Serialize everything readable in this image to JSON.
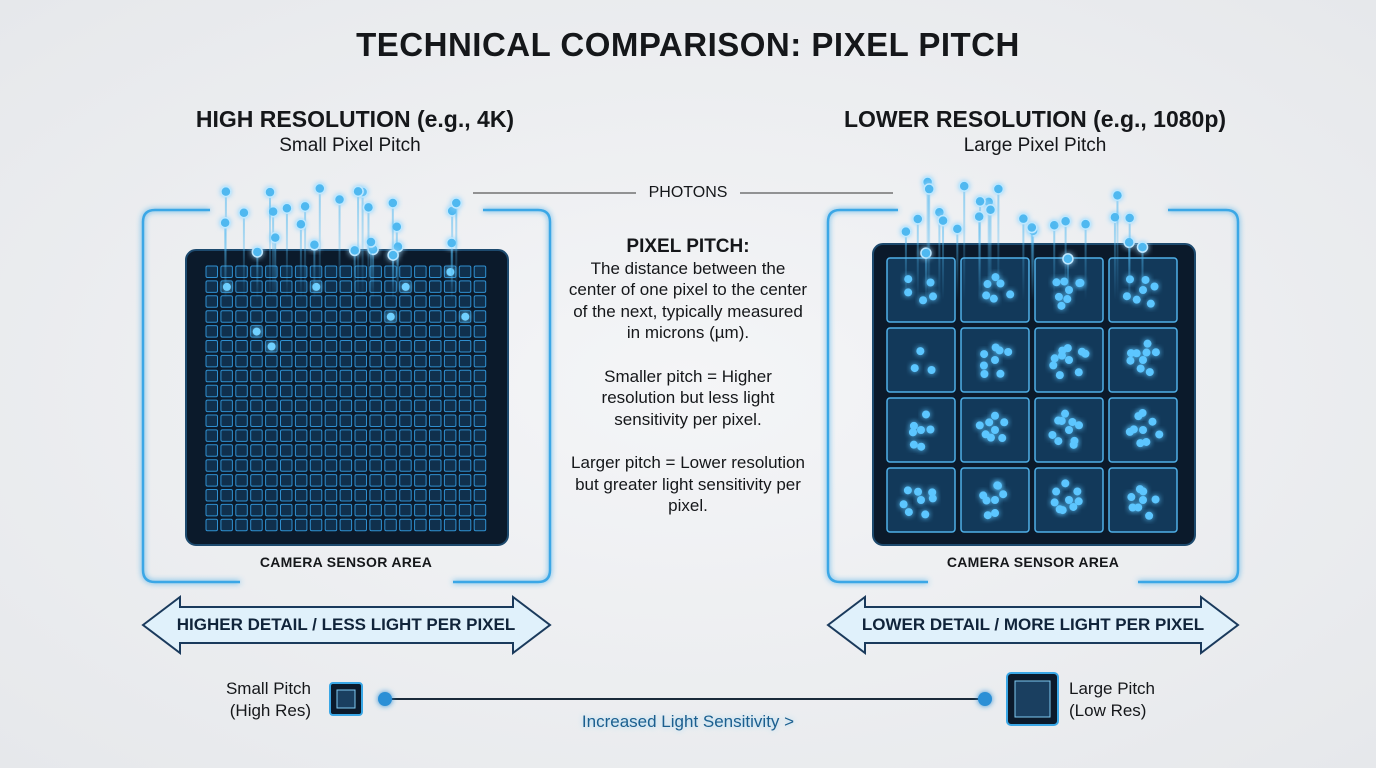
{
  "title": "TECHNICAL COMPARISON: PIXEL PITCH",
  "panels": [
    {
      "heading": "HIGH RESOLUTION (e.g., 4K)",
      "subheading": "Small Pixel Pitch",
      "sensor_label": "CAMERA SENSOR AREA",
      "arrow_label": "HIGHER DETAIL / LESS LIGHT PER PIXEL"
    },
    {
      "heading": "LOWER RESOLUTION (e.g., 1080p)",
      "subheading": "Large Pixel Pitch",
      "sensor_label": "CAMERA SENSOR AREA",
      "arrow_label": "LOWER DETAIL / MORE LIGHT PER PIXEL"
    }
  ],
  "photons_label": "PHOTONS",
  "explanation": {
    "heading": "PIXEL PITCH:",
    "paragraphs": [
      "The distance between the center of one pixel to the center of the next, typically measured in microns (µm).",
      "Smaller pitch = Higher resolution but less light sensitivity per pixel.",
      "Larger pitch = Lower resolution but greater light sensitivity per pixel."
    ]
  },
  "scale": {
    "start_label": [
      "Small Pitch",
      "(High Res)"
    ],
    "end_label": [
      "Large Pitch",
      "(Low Res)"
    ],
    "caption": "Increased Light Sensitivity >"
  }
}
